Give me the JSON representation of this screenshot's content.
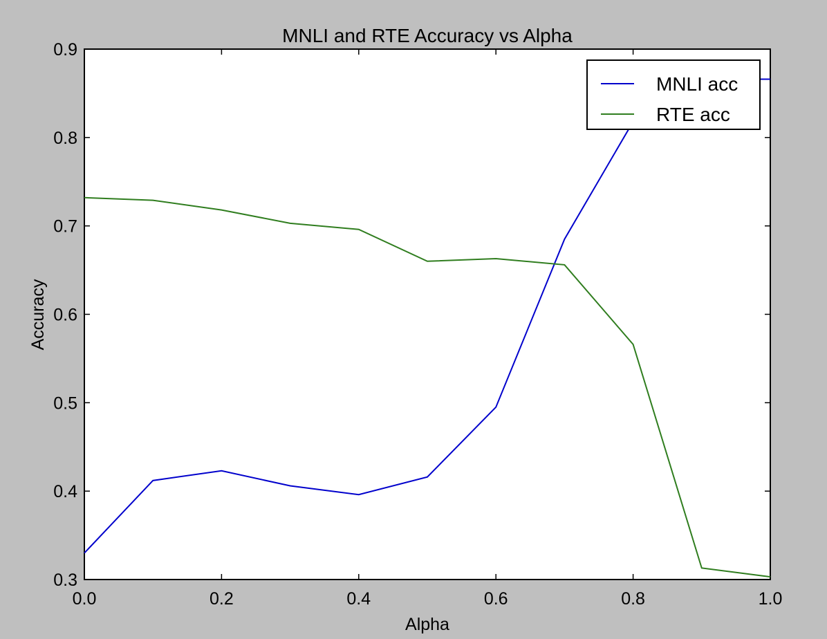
{
  "chart_data": {
    "type": "line",
    "title": "MNLI and RTE Accuracy vs Alpha",
    "xlabel": "Alpha",
    "ylabel": "Accuracy",
    "xlim": [
      0.0,
      1.0
    ],
    "ylim": [
      0.3,
      0.9
    ],
    "xticks": [
      "0.0",
      "0.2",
      "0.4",
      "0.6",
      "0.8",
      "1.0"
    ],
    "yticks": [
      "0.3",
      "0.4",
      "0.5",
      "0.6",
      "0.7",
      "0.8",
      "0.9"
    ],
    "grid": false,
    "legend_position": "top-right",
    "x": [
      0.0,
      0.1,
      0.2,
      0.3,
      0.4,
      0.5,
      0.6,
      0.7,
      0.8,
      0.9,
      1.0
    ],
    "series": [
      {
        "name": "MNLI acc",
        "color": "#0000cc",
        "values": [
          0.33,
          0.412,
          0.423,
          0.406,
          0.396,
          0.416,
          0.495,
          0.685,
          0.818,
          0.866,
          0.866
        ]
      },
      {
        "name": "RTE acc",
        "color": "#2f7d1e",
        "values": [
          0.732,
          0.729,
          0.718,
          0.703,
          0.696,
          0.66,
          0.663,
          0.656,
          0.566,
          0.313,
          0.303
        ]
      }
    ]
  }
}
